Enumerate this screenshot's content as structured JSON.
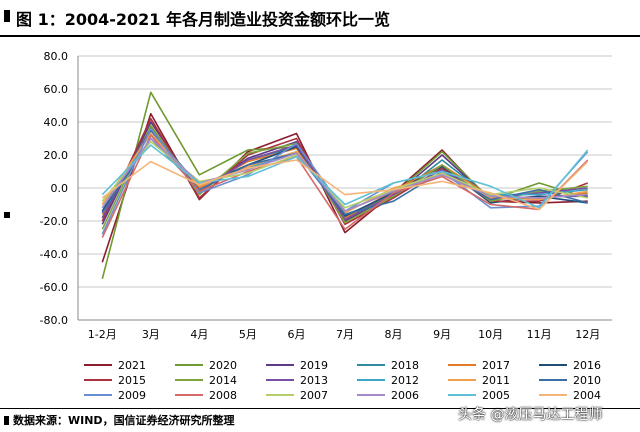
{
  "header": {
    "title": "图 1：2004-2021 年各月制造业投资金额环比一览"
  },
  "footer": {
    "source": "数据来源：WIND，国信证券经济研究所整理"
  },
  "watermark": {
    "text": "头条 @液压马达工程师"
  },
  "chart_data": {
    "type": "line",
    "title": "",
    "xlabel": "",
    "ylabel": "",
    "categories": [
      "1-2月",
      "3月",
      "4月",
      "5月",
      "6月",
      "7月",
      "8月",
      "9月",
      "10月",
      "11月",
      "12月"
    ],
    "ylim": [
      -80,
      80
    ],
    "yticks": [
      80.0,
      60.0,
      40.0,
      20.0,
      0.0,
      -20.0,
      -40.0,
      -60.0,
      -80.0
    ],
    "ytick_labels": [
      "80.0",
      "60.0",
      "40.0",
      "20.0",
      "0.0",
      "-20.0",
      "-40.0",
      "-60.0",
      "-80.0"
    ],
    "grid": true,
    "legend_position": "bottom",
    "series": [
      {
        "name": "2021",
        "color": "#8b1e2e",
        "values": [
          -45,
          45,
          -7,
          22,
          33,
          -27,
          -3,
          23,
          -8,
          -9,
          -8
        ]
      },
      {
        "name": "2020",
        "color": "#6f9a2f",
        "values": [
          -55,
          58,
          8,
          23,
          25,
          -18,
          -4,
          22,
          -7,
          3,
          -6
        ]
      },
      {
        "name": "2019",
        "color": "#5e3a86",
        "values": [
          -22,
          40,
          -3,
          18,
          28,
          -20,
          -5,
          20,
          -7,
          -5,
          -5
        ]
      },
      {
        "name": "2018",
        "color": "#2f8aa0",
        "values": [
          -18,
          37,
          -2,
          17,
          25,
          -16,
          -6,
          17,
          -6,
          -6,
          -4
        ]
      },
      {
        "name": "2017",
        "color": "#e07b2a",
        "values": [
          -16,
          36,
          0,
          16,
          24,
          -18,
          -2,
          14,
          -5,
          -6,
          -3
        ]
      },
      {
        "name": "2016",
        "color": "#1f4e79",
        "values": [
          -14,
          35,
          1,
          14,
          25,
          -17,
          -3,
          13,
          -9,
          -5,
          -9
        ]
      },
      {
        "name": "2015",
        "color": "#a8323e",
        "values": [
          -20,
          42,
          -6,
          20,
          30,
          -22,
          -6,
          12,
          -8,
          -8,
          3
        ]
      },
      {
        "name": "2014",
        "color": "#7fa63e",
        "values": [
          -25,
          38,
          -4,
          21,
          27,
          -21,
          -5,
          14,
          -8,
          -2,
          1
        ]
      },
      {
        "name": "2013",
        "color": "#7a4fa3",
        "values": [
          -18,
          36,
          -2,
          17,
          26,
          -19,
          -4,
          11,
          -6,
          -3,
          0
        ]
      },
      {
        "name": "2012",
        "color": "#3aa5c4",
        "values": [
          -12,
          33,
          2,
          12,
          22,
          -14,
          -2,
          9,
          -4,
          -4,
          -1
        ]
      },
      {
        "name": "2011",
        "color": "#f0a050",
        "values": [
          -10,
          33,
          1,
          13,
          22,
          -15,
          0,
          8,
          -6,
          -7,
          -2
        ]
      },
      {
        "name": "2010",
        "color": "#3b6ea8",
        "values": [
          -15,
          30,
          -1,
          14,
          21,
          -16,
          -8,
          10,
          -7,
          -1,
          -9
        ]
      },
      {
        "name": "2009",
        "color": "#6a8fd0",
        "values": [
          -28,
          36,
          -3,
          8,
          27,
          -14,
          3,
          10,
          -12,
          -11,
          22
        ]
      },
      {
        "name": "2008",
        "color": "#d46a6a",
        "values": [
          -30,
          32,
          -2,
          10,
          19,
          -25,
          -3,
          7,
          -10,
          -13,
          17
        ]
      },
      {
        "name": "2007",
        "color": "#b5cf6b",
        "values": [
          -8,
          28,
          4,
          9,
          20,
          -12,
          -1,
          9,
          -4,
          0,
          -6
        ]
      },
      {
        "name": "2006",
        "color": "#a48ac8",
        "values": [
          -12,
          30,
          3,
          11,
          21,
          -14,
          -2,
          8,
          -5,
          -6,
          -4
        ]
      },
      {
        "name": "2005",
        "color": "#5fc0d8",
        "values": [
          -4,
          26,
          3,
          7,
          19,
          -10,
          3,
          10,
          1,
          -12,
          23
        ]
      },
      {
        "name": "2004",
        "color": "#f5b577",
        "values": [
          -6,
          16,
          2,
          12,
          17,
          -4,
          -1,
          4,
          -3,
          -13,
          16
        ]
      }
    ]
  }
}
